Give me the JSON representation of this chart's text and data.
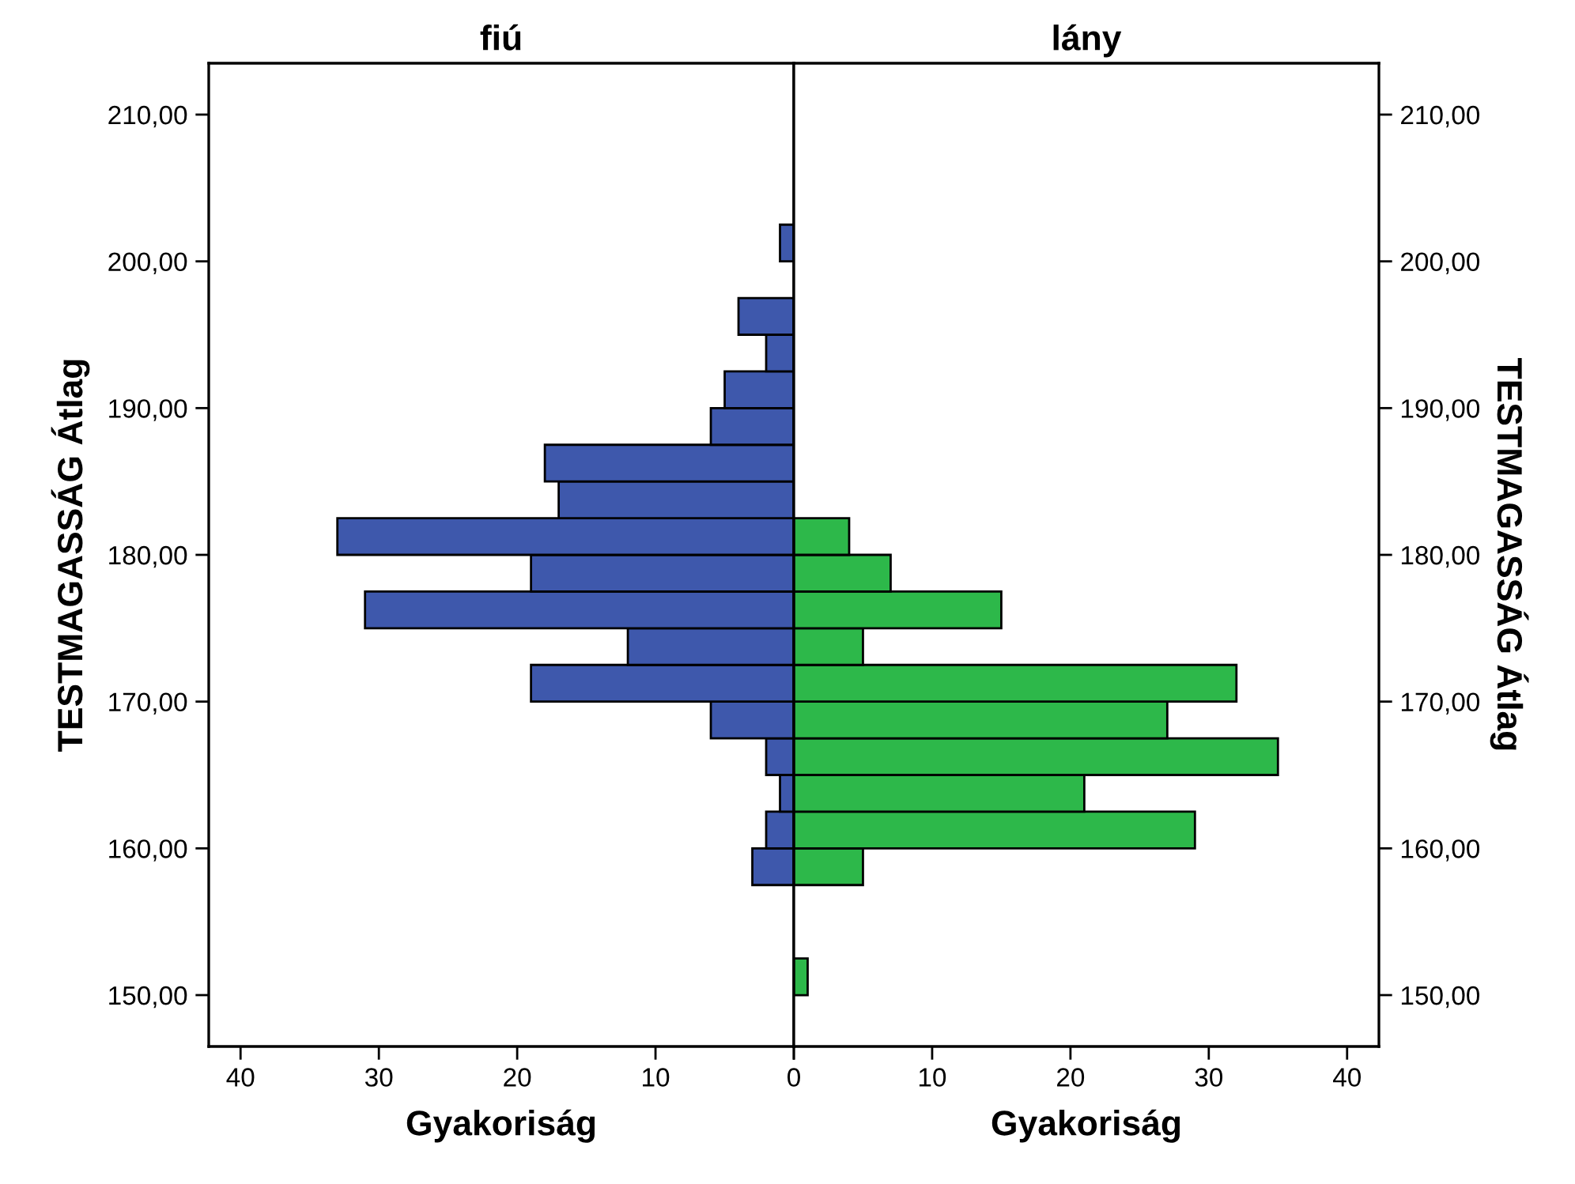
{
  "chart_data": [
    {
      "type": "histogram",
      "orientation": "horizontal",
      "title": "fiú",
      "xlabel": "Gyakoriság",
      "ylabel": "TESTMAGASSÁG Átlag",
      "color": "#3e58ac",
      "bins": [
        157.5,
        160,
        162.5,
        165,
        167.5,
        170,
        172.5,
        175,
        177.5,
        180,
        182.5,
        185,
        187.5,
        190,
        192.5,
        195,
        197.5,
        200,
        202.5
      ],
      "values": [
        3,
        2,
        1,
        2,
        6,
        19,
        12,
        31,
        19,
        33,
        17,
        18,
        6,
        5,
        2,
        4,
        0,
        1
      ],
      "xlim": [
        42.3,
        0
      ],
      "xticks": [
        40,
        30,
        20,
        10,
        0
      ],
      "ylim": [
        146.5,
        213.5
      ],
      "yticks": [
        {
          "value": 150,
          "label": "150,00"
        },
        {
          "value": 160,
          "label": "160,00"
        },
        {
          "value": 170,
          "label": "170,00"
        },
        {
          "value": 180,
          "label": "180,00"
        },
        {
          "value": 190,
          "label": "190,00"
        },
        {
          "value": 200,
          "label": "200,00"
        },
        {
          "value": 210,
          "label": "210,00"
        }
      ],
      "grid": false
    },
    {
      "type": "histogram",
      "orientation": "horizontal",
      "title": "lány",
      "xlabel": "Gyakoriság",
      "ylabel": "TESTMAGASSÁG Átlag",
      "color": "#2db84a",
      "bins": [
        150,
        152.5,
        155,
        157.5,
        160,
        162.5,
        165,
        167.5,
        170,
        172.5,
        175,
        177.5,
        180,
        182.5
      ],
      "values": [
        1,
        0,
        0,
        5,
        29,
        21,
        35,
        27,
        32,
        5,
        15,
        7,
        4
      ],
      "xlim": [
        0,
        42.3
      ],
      "xticks": [
        {
          "value": 0,
          "label": null
        },
        10,
        20,
        30,
        40
      ],
      "ylim": [
        146.5,
        213.5
      ],
      "yticks": [
        {
          "value": 150,
          "label": "150,00"
        },
        {
          "value": 160,
          "label": "160,00"
        },
        {
          "value": 170,
          "label": "170,00"
        },
        {
          "value": 180,
          "label": "180,00"
        },
        {
          "value": 190,
          "label": "190,00"
        },
        {
          "value": 200,
          "label": "200,00"
        },
        {
          "value": 210,
          "label": "210,00"
        }
      ],
      "grid": false
    }
  ]
}
